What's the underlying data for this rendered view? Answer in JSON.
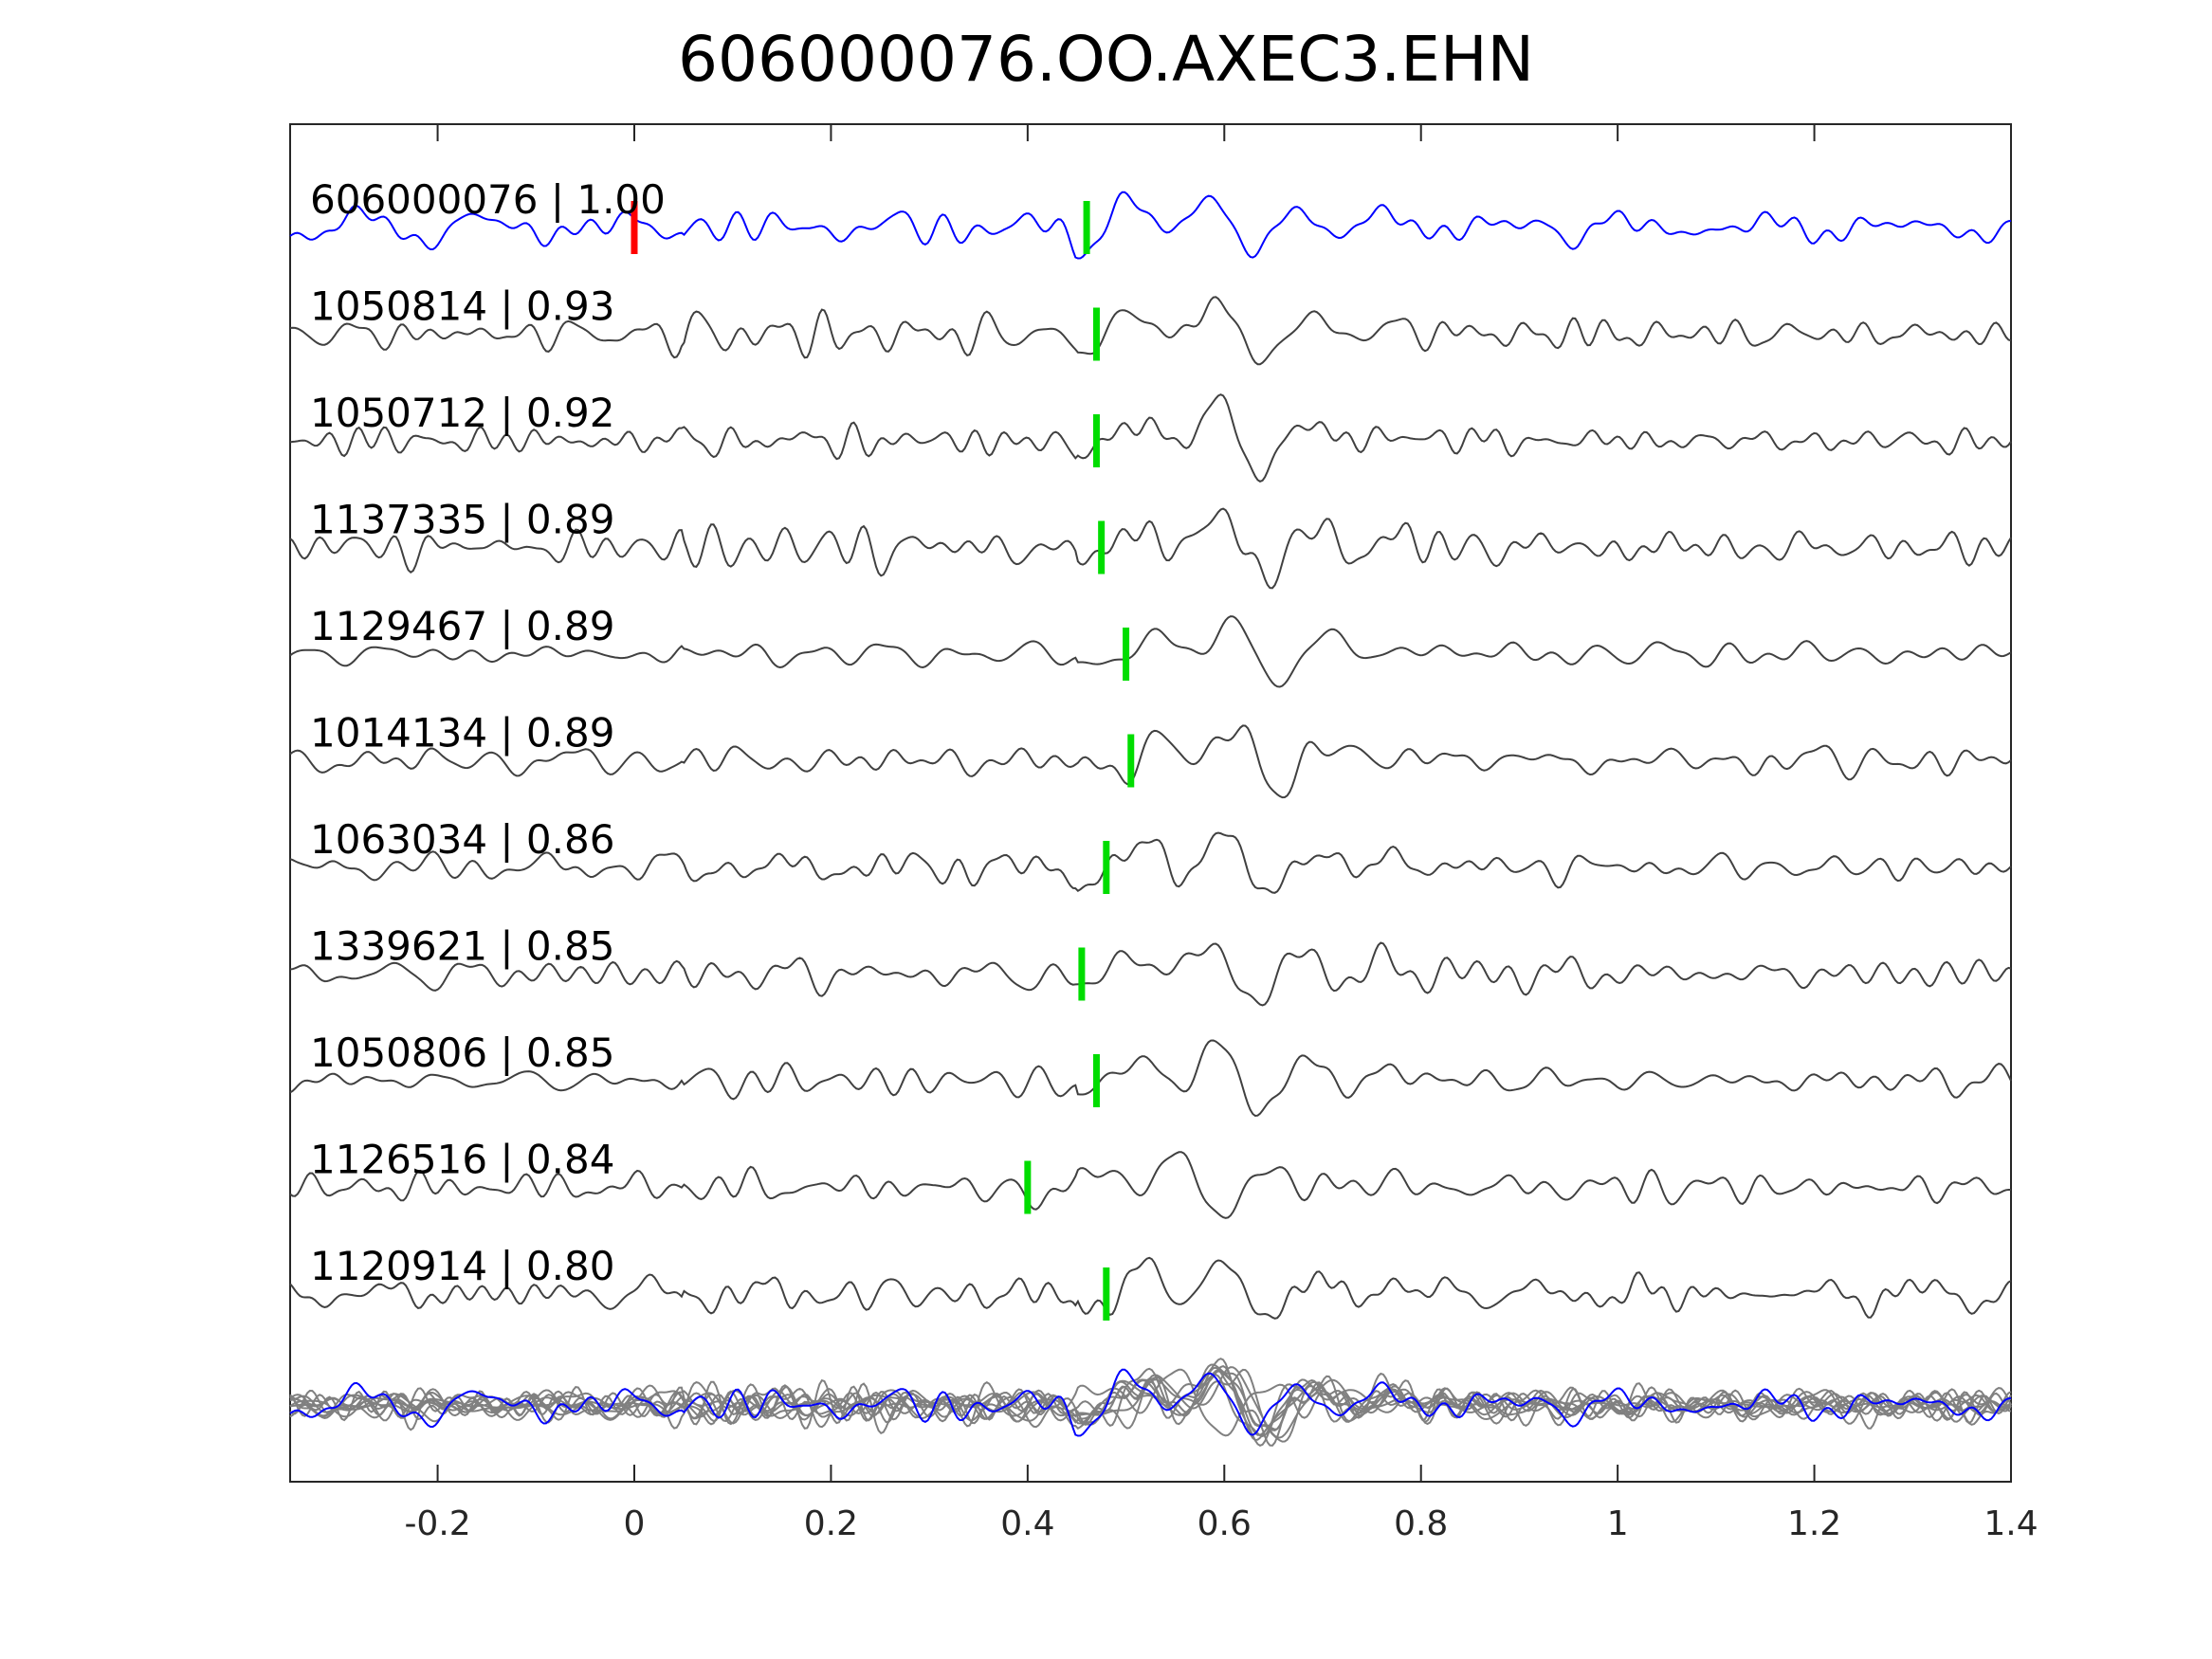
{
  "chart_data": {
    "type": "line",
    "title": "606000076.OO.AXEC3.EHN",
    "xlim": [
      -0.35,
      1.4
    ],
    "xticks": [
      -0.2,
      0,
      0.2,
      0.4,
      0.6,
      0.8,
      1,
      1.2,
      1.4
    ],
    "xtick_labels": [
      "-0.2",
      "0",
      "0.2",
      "0.4",
      "0.6",
      "0.8",
      "1",
      "1.2",
      "1.4"
    ],
    "xlabel": "",
    "ylabel": "",
    "grid": false,
    "colors": {
      "reference": "#0000ff",
      "trace": "#404040",
      "overlay": "#808080",
      "ref_pick": "#ff0000",
      "pick": "#00dd00"
    },
    "traces": [
      {
        "id": "606000076",
        "cc": "1.00",
        "label": "606000076 | 1.00",
        "reference": true,
        "pick": 0.46,
        "ref_pick": 0.0,
        "seed": 11
      },
      {
        "id": "1050814",
        "cc": "0.93",
        "label": "1050814 | 0.93",
        "pick": 0.47,
        "seed": 23
      },
      {
        "id": "1050712",
        "cc": "0.92",
        "label": "1050712 | 0.92",
        "pick": 0.47,
        "seed": 37
      },
      {
        "id": "1137335",
        "cc": "0.89",
        "label": "1137335 | 0.89",
        "pick": 0.475,
        "seed": 41
      },
      {
        "id": "1129467",
        "cc": "0.89",
        "label": "1129467 | 0.89",
        "pick": 0.5,
        "seed": 53
      },
      {
        "id": "1014134",
        "cc": "0.89",
        "label": "1014134 | 0.89",
        "pick": 0.505,
        "seed": 67
      },
      {
        "id": "1063034",
        "cc": "0.86",
        "label": "1063034 | 0.86",
        "pick": 0.48,
        "seed": 71
      },
      {
        "id": "1339621",
        "cc": "0.85",
        "label": "1339621 | 0.85",
        "pick": 0.455,
        "seed": 83
      },
      {
        "id": "1050806",
        "cc": "0.85",
        "label": "1050806 | 0.85",
        "pick": 0.47,
        "seed": 97
      },
      {
        "id": "1126516",
        "cc": "0.84",
        "label": "1126516 | 0.84",
        "pick": 0.4,
        "seed": 101
      },
      {
        "id": "1120914",
        "cc": "0.80",
        "label": "1120914 | 0.80",
        "pick": 0.48,
        "seed": 113
      }
    ],
    "waveform_features": [
      {
        "t": 0.46,
        "amp": -0.25,
        "width": 0.02
      },
      {
        "t": 0.52,
        "amp": 0.5,
        "width": 0.025
      },
      {
        "t": 0.555,
        "amp": -0.45,
        "width": 0.022
      },
      {
        "t": 0.595,
        "amp": 1.0,
        "width": 0.022
      },
      {
        "t": 0.635,
        "amp": -0.95,
        "width": 0.022
      },
      {
        "t": 0.68,
        "amp": 0.6,
        "width": 0.025
      },
      {
        "t": 0.72,
        "amp": -0.3,
        "width": 0.025
      },
      {
        "t": 0.76,
        "amp": 0.2,
        "width": 0.03
      }
    ],
    "overlay": "all traces aligned and stacked"
  }
}
